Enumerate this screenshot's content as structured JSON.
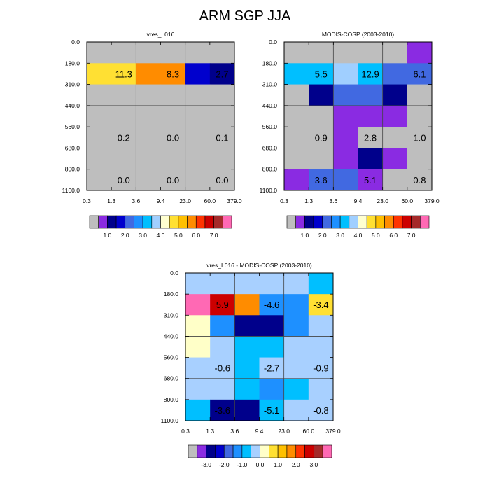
{
  "page_title": "ARM SGP JJA",
  "palettes": {
    "abs": [
      "#bebebe",
      "#8a2be2",
      "#00008b",
      "#0000cd",
      "#4169e1",
      "#1e90ff",
      "#00bfff",
      "#a0cfff",
      "#ffffd0",
      "#ffe033",
      "#ffc000",
      "#ff8c00",
      "#ff3300",
      "#cc0000",
      "#a52a2a",
      "#ff69b4"
    ],
    "diff": [
      "#bebebe",
      "#8a2be2",
      "#00008b",
      "#0000cd",
      "#4169e1",
      "#1e90ff",
      "#00bfff",
      "#a8d0ff",
      "#ffffc8",
      "#ffe033",
      "#ffc000",
      "#ff8c00",
      "#ff3300",
      "#cc0000",
      "#a52a2a",
      "#ff69b4"
    ]
  },
  "colorbars": [
    {
      "name": "colorbar-1",
      "palette": "abs",
      "labels": [
        "1.0",
        "2.0",
        "3.0",
        "4.0",
        "5.0",
        "6.0",
        "7.0"
      ]
    },
    {
      "name": "colorbar-2",
      "palette": "abs",
      "labels": [
        "1.0",
        "2.0",
        "3.0",
        "4.0",
        "5.0",
        "6.0",
        "7.0"
      ]
    },
    {
      "name": "colorbar-3",
      "palette": "diff",
      "labels": [
        "-3.0",
        "-2.0",
        "-1.0",
        "0.0",
        "1.0",
        "2.0",
        "3.0"
      ]
    }
  ],
  "chart_data": [
    {
      "type": "heatmap",
      "title": "vres_L016",
      "xticks": [
        "0.3",
        "1.3",
        "3.6",
        "9.4",
        "23.0",
        "60.0",
        "379.0"
      ],
      "yticks": [
        "0.0",
        "180.0",
        "310.0",
        "440.0",
        "560.0",
        "680.0",
        "800.0",
        "1100.0"
      ],
      "xlabel": "",
      "ylabel": "",
      "cells": [
        [
          0,
          0,
          0,
          0,
          0,
          0
        ],
        [
          9,
          9,
          11,
          11,
          3,
          2
        ],
        [
          0,
          0,
          0,
          0,
          0,
          0
        ],
        [
          0,
          0,
          0,
          0,
          0,
          0
        ],
        [
          0,
          0,
          0,
          0,
          0,
          0
        ],
        [
          0,
          0,
          0,
          0,
          0,
          0
        ],
        [
          0,
          0,
          0,
          0,
          0,
          0
        ]
      ],
      "annotations": [
        {
          "text": "11.3",
          "x": "1.3",
          "y": "180.0–310.0"
        },
        {
          "text": "8.3",
          "x": "9.4",
          "y": "180.0–310.0"
        },
        {
          "text": "2.7",
          "x": "60.0",
          "y": "180.0–310.0"
        },
        {
          "text": "0.2",
          "x": "1.3",
          "y": "440.0–680.0"
        },
        {
          "text": "0.0",
          "x": "9.4",
          "y": "440.0–680.0"
        },
        {
          "text": "0.1",
          "x": "60.0",
          "y": "440.0–680.0"
        },
        {
          "text": "0.0",
          "x": "1.3",
          "y": "680.0–1100.0"
        },
        {
          "text": "0.0",
          "x": "9.4",
          "y": "680.0–1100.0"
        },
        {
          "text": "0.0",
          "x": "60.0",
          "y": "680.0–1100.0"
        }
      ],
      "cell_text_blocks": [
        {
          "row": 1.5,
          "col": 1,
          "text": "11.3"
        },
        {
          "row": 1.5,
          "col": 3,
          "text": "8.3"
        },
        {
          "row": 1.5,
          "col": 5,
          "text": "2.7"
        },
        {
          "row": 4,
          "col": 1,
          "text": "0.2"
        },
        {
          "row": 4,
          "col": 3,
          "text": "0.0"
        },
        {
          "row": 4,
          "col": 5,
          "text": "0.1"
        },
        {
          "row": 6,
          "col": 1,
          "text": "0.0"
        },
        {
          "row": 6,
          "col": 3,
          "text": "0.0"
        },
        {
          "row": 6,
          "col": 5,
          "text": "0.0"
        }
      ],
      "palette": "abs"
    },
    {
      "type": "heatmap",
      "title": "MODIS-COSP (2003-2010)",
      "xticks": [
        "0.3",
        "1.3",
        "3.6",
        "9.4",
        "23.0",
        "60.0",
        "379.0"
      ],
      "yticks": [
        "0.0",
        "180.0",
        "310.0",
        "440.0",
        "560.0",
        "680.0",
        "800.0",
        "1100.0"
      ],
      "xlabel": "",
      "ylabel": "",
      "cells": [
        [
          0,
          0,
          0,
          0,
          0,
          1
        ],
        [
          6,
          6,
          7,
          6,
          4,
          4
        ],
        [
          0,
          2,
          4,
          4,
          2,
          0
        ],
        [
          0,
          0,
          1,
          1,
          1,
          0
        ],
        [
          0,
          0,
          1,
          0,
          0,
          0
        ],
        [
          0,
          0,
          1,
          2,
          1,
          0
        ],
        [
          1,
          4,
          4,
          1,
          0,
          0
        ]
      ],
      "annotations": [
        {
          "text": "5.5",
          "x": "1.3",
          "y": "180.0–310.0"
        },
        {
          "text": "12.9",
          "x": "9.4",
          "y": "180.0–310.0"
        },
        {
          "text": "6.1",
          "x": "60.0",
          "y": "180.0–310.0"
        },
        {
          "text": "0.9",
          "x": "1.3",
          "y": "440.0–680.0"
        },
        {
          "text": "2.8",
          "x": "9.4",
          "y": "440.0–680.0"
        },
        {
          "text": "1.0",
          "x": "60.0",
          "y": "440.0–680.0"
        },
        {
          "text": "3.6",
          "x": "1.3",
          "y": "680.0–1100.0"
        },
        {
          "text": "5.1",
          "x": "9.4",
          "y": "680.0–1100.0"
        },
        {
          "text": "0.8",
          "x": "60.0",
          "y": "680.0–1100.0"
        }
      ],
      "cell_text_blocks": [
        {
          "row": 1.5,
          "col": 1,
          "text": "5.5"
        },
        {
          "row": 1.5,
          "col": 3,
          "text": "12.9"
        },
        {
          "row": 1.5,
          "col": 5,
          "text": "6.1"
        },
        {
          "row": 4,
          "col": 1,
          "text": "0.9"
        },
        {
          "row": 4,
          "col": 3,
          "text": "2.8"
        },
        {
          "row": 4,
          "col": 5,
          "text": "1.0"
        },
        {
          "row": 6,
          "col": 1,
          "text": "3.6"
        },
        {
          "row": 6,
          "col": 3,
          "text": "5.1"
        },
        {
          "row": 6,
          "col": 5,
          "text": "0.8"
        }
      ],
      "palette": "abs"
    },
    {
      "type": "heatmap",
      "title": "vres_L016 - MODIS-COSP (2003-2010)",
      "xticks": [
        "0.3",
        "1.3",
        "3.6",
        "9.4",
        "23.0",
        "60.0",
        "379.0"
      ],
      "yticks": [
        "0.0",
        "180.0",
        "310.0",
        "440.0",
        "560.0",
        "680.0",
        "800.0",
        "1100.0"
      ],
      "xlabel": "",
      "ylabel": "",
      "cells": [
        [
          7,
          7,
          7,
          7,
          7,
          6
        ],
        [
          15,
          13,
          11,
          5,
          5,
          9
        ],
        [
          8,
          5,
          2,
          2,
          5,
          7
        ],
        [
          8,
          7,
          6,
          6,
          7,
          7
        ],
        [
          7,
          7,
          6,
          7,
          7,
          7
        ],
        [
          7,
          7,
          6,
          5,
          6,
          7
        ],
        [
          6,
          2,
          2,
          6,
          7,
          7
        ]
      ],
      "annotations": [
        {
          "text": "5.9",
          "x": "1.3",
          "y": "180.0–310.0"
        },
        {
          "text": "-4.6",
          "x": "9.4",
          "y": "180.0–310.0"
        },
        {
          "text": "-3.4",
          "x": "60.0",
          "y": "180.0–310.0"
        },
        {
          "text": "-0.6",
          "x": "1.3",
          "y": "440.0–680.0"
        },
        {
          "text": "-2.7",
          "x": "9.4",
          "y": "440.0–680.0"
        },
        {
          "text": "-0.9",
          "x": "60.0",
          "y": "440.0–680.0"
        },
        {
          "text": "-3.6",
          "x": "1.3",
          "y": "680.0–1100.0"
        },
        {
          "text": "-5.1",
          "x": "9.4",
          "y": "680.0–1100.0"
        },
        {
          "text": "-0.8",
          "x": "60.0",
          "y": "680.0–1100.0"
        }
      ],
      "cell_text_blocks": [
        {
          "row": 1.5,
          "col": 1,
          "text": "5.9"
        },
        {
          "row": 1.5,
          "col": 3,
          "text": "-4.6"
        },
        {
          "row": 1.5,
          "col": 5,
          "text": "-3.4"
        },
        {
          "row": 4,
          "col": 1,
          "text": "-0.6"
        },
        {
          "row": 4,
          "col": 3,
          "text": "-2.7"
        },
        {
          "row": 4,
          "col": 5,
          "text": "-0.9"
        },
        {
          "row": 6,
          "col": 1,
          "text": "-3.6"
        },
        {
          "row": 6,
          "col": 3,
          "text": "-5.1"
        },
        {
          "row": 6,
          "col": 5,
          "text": "-0.8"
        }
      ],
      "palette": "diff"
    }
  ]
}
